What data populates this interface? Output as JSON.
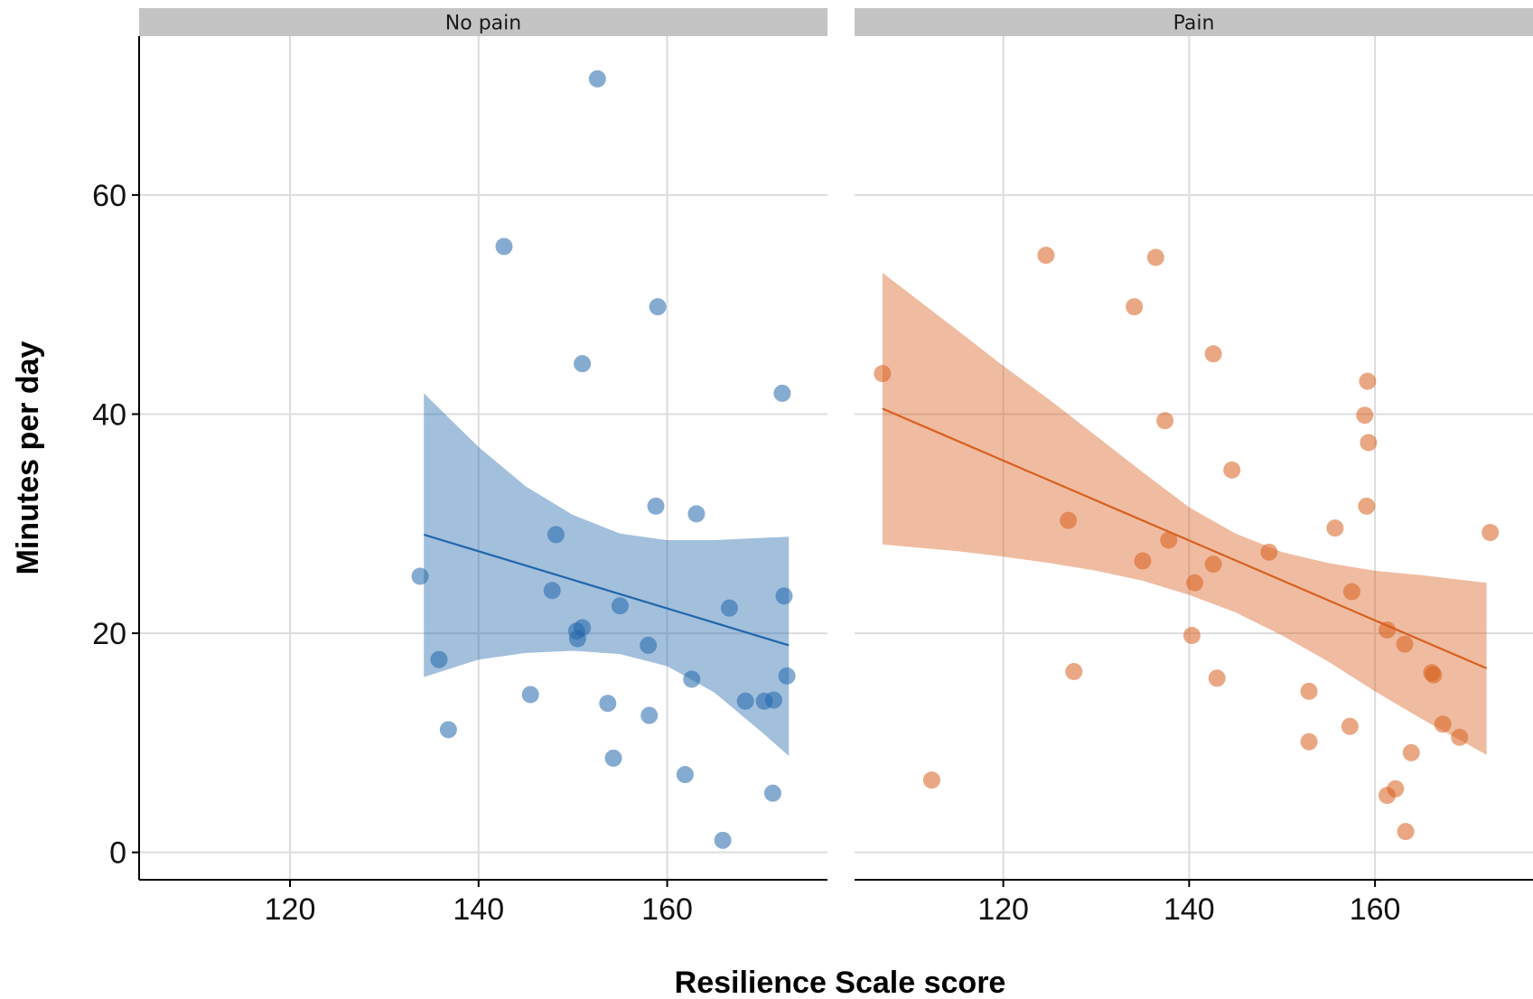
{
  "chart_data": {
    "type": "scatter",
    "xlabel": "Resilience Scale score",
    "ylabel": "Minutes per day",
    "xlim": [
      104,
      177
    ],
    "ylim": [
      -2.5,
      74.5
    ],
    "x_ticks": [
      120,
      140,
      160
    ],
    "y_ticks": [
      0,
      20,
      40,
      60
    ],
    "grid": true,
    "legend": "none",
    "panels": [
      {
        "name": "No pain",
        "color": "#2166ac",
        "points": [
          {
            "x": 133.8,
            "y": 25.2
          },
          {
            "x": 135.8,
            "y": 17.6
          },
          {
            "x": 136.8,
            "y": 11.2
          },
          {
            "x": 142.7,
            "y": 55.3
          },
          {
            "x": 145.5,
            "y": 14.4
          },
          {
            "x": 147.8,
            "y": 23.9
          },
          {
            "x": 148.2,
            "y": 29.0
          },
          {
            "x": 150.4,
            "y": 20.2
          },
          {
            "x": 150.5,
            "y": 19.5
          },
          {
            "x": 151.0,
            "y": 20.5
          },
          {
            "x": 151.0,
            "y": 44.6
          },
          {
            "x": 152.6,
            "y": 70.6
          },
          {
            "x": 153.7,
            "y": 13.6
          },
          {
            "x": 154.3,
            "y": 8.6
          },
          {
            "x": 155.0,
            "y": 22.5
          },
          {
            "x": 158.0,
            "y": 18.9
          },
          {
            "x": 158.1,
            "y": 12.5
          },
          {
            "x": 158.8,
            "y": 31.6
          },
          {
            "x": 159.0,
            "y": 49.8
          },
          {
            "x": 161.9,
            "y": 7.1
          },
          {
            "x": 162.6,
            "y": 15.8
          },
          {
            "x": 163.1,
            "y": 30.9
          },
          {
            "x": 165.9,
            "y": 1.1
          },
          {
            "x": 166.6,
            "y": 22.3
          },
          {
            "x": 168.3,
            "y": 13.8
          },
          {
            "x": 170.3,
            "y": 13.8
          },
          {
            "x": 171.2,
            "y": 5.4
          },
          {
            "x": 171.3,
            "y": 13.9
          },
          {
            "x": 172.2,
            "y": 41.9
          },
          {
            "x": 172.4,
            "y": 23.4
          },
          {
            "x": 172.7,
            "y": 16.1
          }
        ],
        "fit": {
          "x": [
            134.2,
            172.9
          ],
          "y": [
            29.0,
            18.9
          ]
        },
        "band": {
          "x": [
            134.2,
            140,
            145,
            150,
            155,
            160,
            165,
            170,
            172.9
          ],
          "lower": [
            16.0,
            17.6,
            18.2,
            18.4,
            18.1,
            17.0,
            14.6,
            11.0,
            8.8
          ],
          "upper": [
            41.9,
            37.0,
            33.4,
            30.8,
            29.1,
            28.5,
            28.5,
            28.7,
            28.8
          ]
        }
      },
      {
        "name": "Pain",
        "color": "#d95f1e",
        "points": [
          {
            "x": 107.0,
            "y": 43.7
          },
          {
            "x": 112.3,
            "y": 6.6
          },
          {
            "x": 124.6,
            "y": 54.5
          },
          {
            "x": 127.0,
            "y": 30.3
          },
          {
            "x": 127.6,
            "y": 16.5
          },
          {
            "x": 134.1,
            "y": 49.8
          },
          {
            "x": 135.0,
            "y": 26.6
          },
          {
            "x": 136.4,
            "y": 54.3
          },
          {
            "x": 137.4,
            "y": 39.4
          },
          {
            "x": 137.8,
            "y": 28.5
          },
          {
            "x": 140.3,
            "y": 19.8
          },
          {
            "x": 140.6,
            "y": 24.6
          },
          {
            "x": 142.6,
            "y": 45.5
          },
          {
            "x": 142.6,
            "y": 26.3
          },
          {
            "x": 143.0,
            "y": 15.9
          },
          {
            "x": 144.6,
            "y": 34.9
          },
          {
            "x": 148.6,
            "y": 27.4
          },
          {
            "x": 152.9,
            "y": 14.7
          },
          {
            "x": 152.9,
            "y": 10.1
          },
          {
            "x": 155.7,
            "y": 29.6
          },
          {
            "x": 157.3,
            "y": 11.5
          },
          {
            "x": 157.5,
            "y": 23.8
          },
          {
            "x": 158.9,
            "y": 39.9
          },
          {
            "x": 159.1,
            "y": 31.6
          },
          {
            "x": 159.2,
            "y": 43.0
          },
          {
            "x": 159.3,
            "y": 37.4
          },
          {
            "x": 161.3,
            "y": 20.3
          },
          {
            "x": 161.3,
            "y": 5.2
          },
          {
            "x": 162.2,
            "y": 5.8
          },
          {
            "x": 163.2,
            "y": 19.0
          },
          {
            "x": 163.3,
            "y": 1.9
          },
          {
            "x": 163.9,
            "y": 9.1
          },
          {
            "x": 166.1,
            "y": 16.4
          },
          {
            "x": 166.3,
            "y": 16.2
          },
          {
            "x": 167.3,
            "y": 11.7
          },
          {
            "x": 169.1,
            "y": 10.5
          },
          {
            "x": 172.4,
            "y": 29.2
          }
        ],
        "fit": {
          "x": [
            107.0,
            172.0
          ],
          "y": [
            40.5,
            16.8
          ]
        },
        "band": {
          "x": [
            107.0,
            115,
            120,
            125,
            130,
            135,
            140,
            145,
            150,
            155,
            160,
            165,
            172.0
          ],
          "lower": [
            28.1,
            27.5,
            27.0,
            26.4,
            25.7,
            24.8,
            23.5,
            21.9,
            19.8,
            17.4,
            14.7,
            12.2,
            8.9
          ],
          "upper": [
            52.9,
            47.7,
            44.4,
            41.3,
            38.0,
            34.7,
            31.5,
            29.1,
            27.4,
            26.4,
            25.7,
            25.3,
            24.6
          ]
        }
      }
    ]
  }
}
